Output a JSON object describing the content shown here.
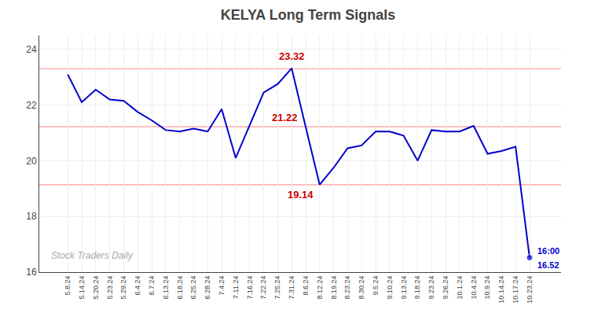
{
  "chart_data": {
    "type": "line",
    "title": "KELYA Long Term Signals",
    "categories": [
      "5.8.24",
      "5.14.24",
      "5.20.24",
      "5.23.24",
      "5.29.24",
      "6.4.24",
      "6.7.24",
      "6.13.24",
      "6.18.24",
      "6.25.24",
      "6.28.24",
      "7.4.24",
      "7.11.24",
      "7.16.24",
      "7.22.24",
      "7.25.24",
      "7.31.24",
      "8.6.24",
      "8.12.24",
      "8.19.24",
      "8.23.24",
      "8.30.24",
      "9.5.24",
      "9.10.24",
      "9.13.24",
      "9.18.24",
      "9.23.24",
      "9.26.24",
      "10.1.24",
      "10.4.24",
      "10.9.24",
      "10.14.24",
      "10.17.24",
      "10.23.24"
    ],
    "values": [
      23.1,
      22.1,
      22.55,
      22.2,
      22.15,
      21.75,
      21.45,
      21.1,
      21.05,
      21.15,
      21.05,
      21.85,
      20.1,
      21.25,
      22.45,
      22.75,
      23.32,
      21.22,
      19.14,
      19.75,
      20.45,
      20.55,
      21.05,
      21.05,
      20.9,
      20.0,
      21.1,
      21.05,
      21.05,
      21.25,
      20.25,
      20.35,
      20.5,
      16.52
    ],
    "color": "#0000cc",
    "ylim": [
      16,
      24.5
    ],
    "yticks": [
      16,
      18,
      20,
      22,
      24
    ],
    "grid": true,
    "reference_lines": {
      "values": [
        23.3,
        21.22,
        19.14
      ],
      "color": "#ff9999"
    },
    "annotations": [
      {
        "text": "23.32",
        "x": "7.31.24",
        "y": 23.32,
        "color": "#cc0000"
      },
      {
        "text": "21.22",
        "x": "8.6.24",
        "y": 21.22,
        "color": "#cc0000"
      },
      {
        "text": "19.14",
        "x": "8.12.24",
        "y": 19.14,
        "color": "#cc0000"
      },
      {
        "text": "16:00",
        "x": "10.23.24",
        "y": 16.52,
        "color": "#0000cc"
      },
      {
        "text": "16.52",
        "x": "10.23.24",
        "y": 16.52,
        "color": "#0000cc"
      }
    ],
    "watermark": {
      "text": "Stock Traders Daily",
      "color": "#aaaaaa"
    }
  }
}
